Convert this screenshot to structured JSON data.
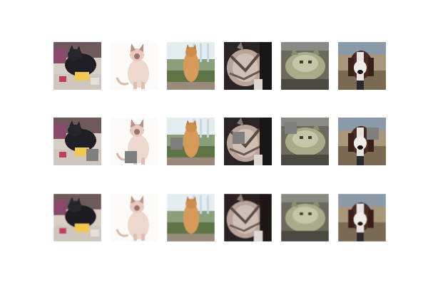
{
  "colors": {
    "background": "#ffffff",
    "occlusion_patch": "#7f7f7f"
  },
  "rows": [
    {
      "role": "original",
      "tiles": [
        {
          "subject": "black-cat-on-bed",
          "occluded": false,
          "reconstructed": false
        },
        {
          "subject": "siamese-cat-sitting",
          "occluded": false,
          "reconstructed": false
        },
        {
          "subject": "orange-cat-on-porch",
          "occluded": false,
          "reconstructed": false
        },
        {
          "subject": "tabby-cat-closeup",
          "occluded": false,
          "reconstructed": false
        },
        {
          "subject": "grey-cat-lying",
          "occluded": false,
          "reconstructed": false
        },
        {
          "subject": "brown-white-dog",
          "occluded": false,
          "reconstructed": false
        }
      ]
    },
    {
      "role": "occluded",
      "tiles": [
        {
          "subject": "black-cat-on-bed",
          "occluded": true,
          "reconstructed": false
        },
        {
          "subject": "siamese-cat-sitting",
          "occluded": true,
          "reconstructed": false
        },
        {
          "subject": "orange-cat-on-porch",
          "occluded": true,
          "reconstructed": false
        },
        {
          "subject": "tabby-cat-closeup",
          "occluded": true,
          "reconstructed": false
        },
        {
          "subject": "grey-cat-lying",
          "occluded": true,
          "reconstructed": false
        },
        {
          "subject": "brown-white-dog",
          "occluded": true,
          "reconstructed": false
        }
      ]
    },
    {
      "role": "reconstructed",
      "tiles": [
        {
          "subject": "black-cat-on-bed",
          "occluded": false,
          "reconstructed": true
        },
        {
          "subject": "siamese-cat-sitting",
          "occluded": false,
          "reconstructed": true
        },
        {
          "subject": "orange-cat-on-porch",
          "occluded": false,
          "reconstructed": true
        },
        {
          "subject": "tabby-cat-closeup",
          "occluded": false,
          "reconstructed": true
        },
        {
          "subject": "grey-cat-lying",
          "occluded": false,
          "reconstructed": true
        },
        {
          "subject": "brown-white-dog",
          "occluded": false,
          "reconstructed": true
        }
      ]
    }
  ]
}
